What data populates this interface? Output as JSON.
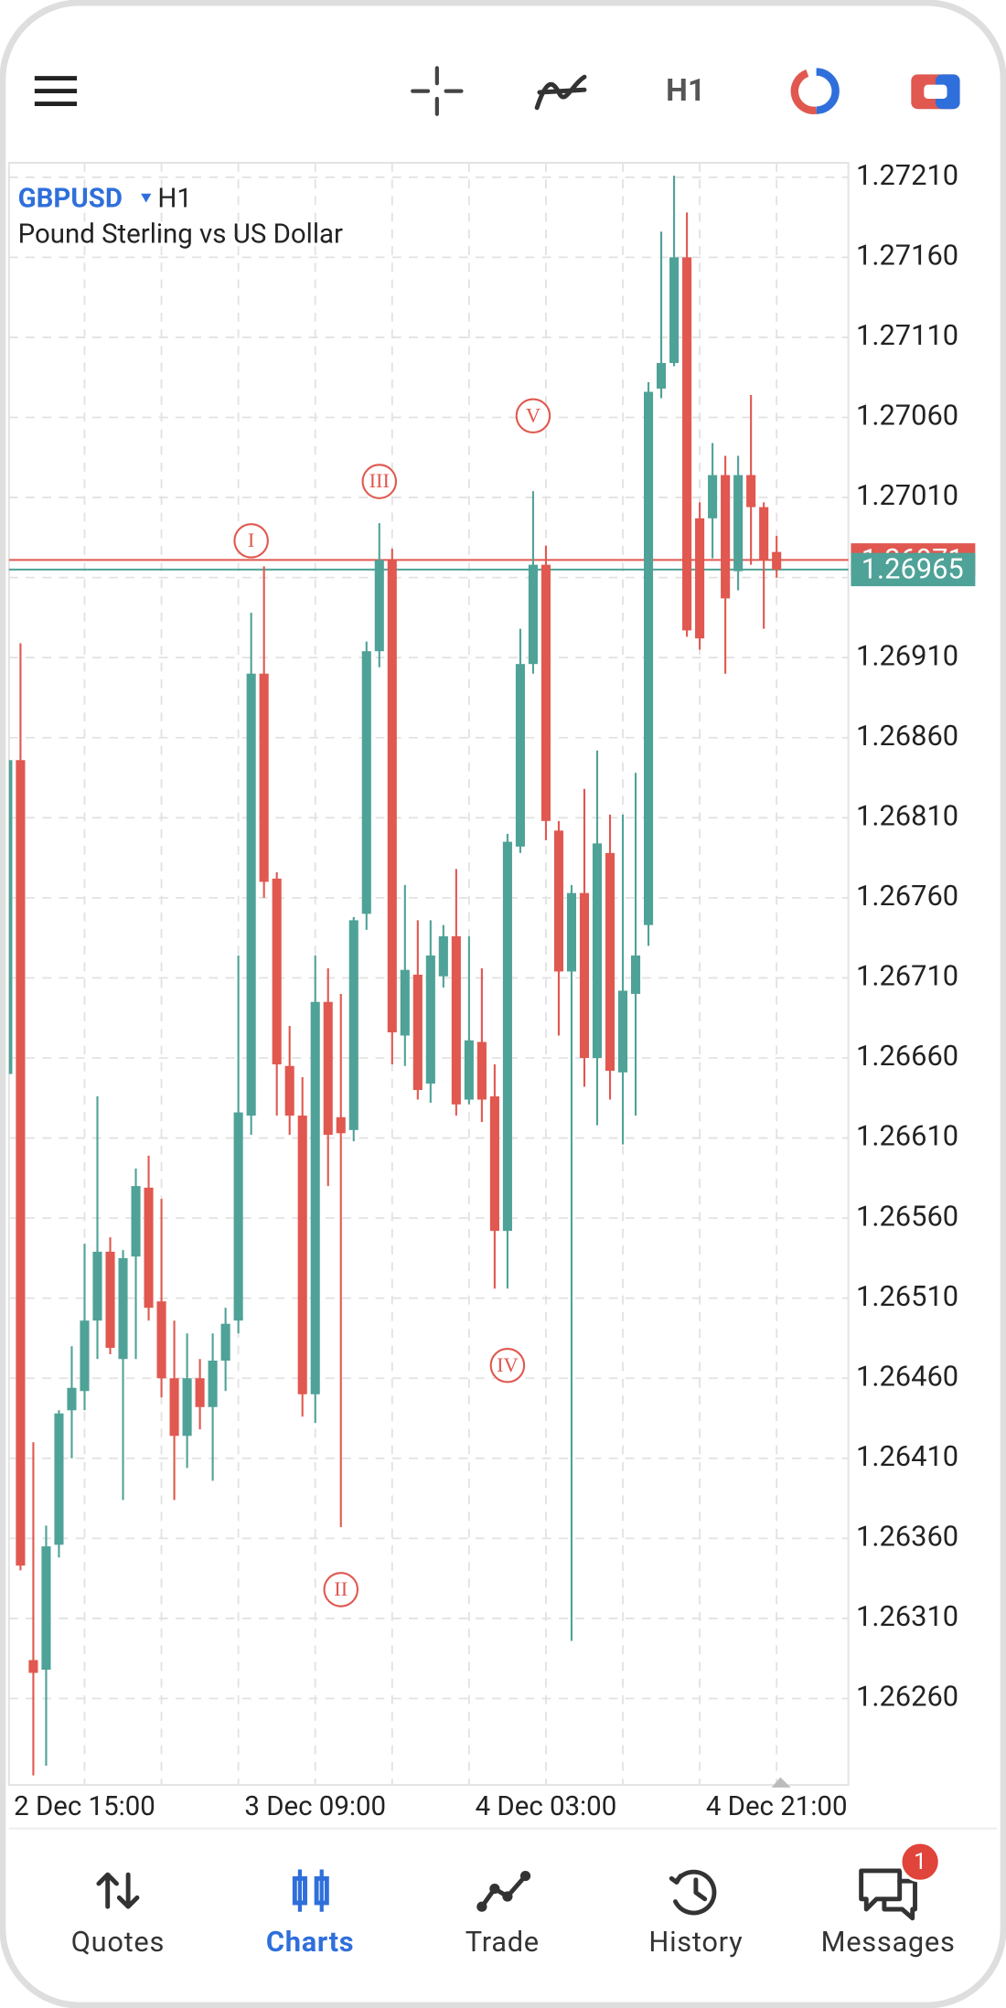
{
  "toolbar": {
    "timeframe": "H1"
  },
  "symbol": {
    "name": "GBPUSD",
    "timeframe": "H1",
    "description": "Pound Sterling vs US Dollar"
  },
  "chart_data": {
    "type": "candlestick",
    "categories": [
      null,
      null,
      null,
      null,
      null,
      null,
      "2 Dec 15:00",
      null,
      null,
      null,
      null,
      null,
      null,
      null,
      null,
      null,
      null,
      null,
      null,
      null,
      null,
      null,
      null,
      null,
      "3 Dec 09:00",
      null,
      null,
      null,
      null,
      null,
      null,
      null,
      null,
      null,
      null,
      null,
      null,
      null,
      null,
      null,
      null,
      null,
      "4 Dec 03:00",
      null,
      null,
      null,
      null,
      null,
      null,
      null,
      null,
      null,
      null,
      null,
      null,
      null,
      null,
      null,
      null,
      null,
      "4 Dec 21:00"
    ],
    "open": [
      1.2665,
      1.26846,
      1.26284,
      1.26278,
      1.26356,
      1.2644,
      1.26452,
      1.26496,
      1.26539,
      1.26472,
      1.26536,
      1.26579,
      1.26508,
      1.2646,
      1.26424,
      1.2646,
      1.26442,
      1.26471,
      1.26496,
      1.26624,
      1.269,
      1.26772,
      1.26655,
      1.26624,
      1.2645,
      1.26695,
      1.26623,
      1.26615,
      1.2675,
      1.26914,
      1.26971,
      1.26674,
      1.26712,
      1.26644,
      1.26711,
      1.26736,
      1.26634,
      1.2667,
      1.26636,
      1.26552,
      1.26792,
      1.26906,
      1.26968,
      1.26802,
      1.26714,
      1.26763,
      1.2666,
      1.26788,
      1.26651,
      1.267,
      1.26743,
      1.27078,
      1.27094,
      1.2716,
      1.26997,
      1.26997,
      1.27024,
      1.26964,
      1.27024,
      1.27004,
      1.26976
    ],
    "high": [
      1.26846,
      1.26919,
      1.2642,
      1.26368,
      1.2644,
      1.2648,
      1.26544,
      1.26636,
      1.26548,
      1.2654,
      1.26591,
      1.26599,
      1.26572,
      1.26496,
      1.26488,
      1.26472,
      1.26488,
      1.26504,
      1.26724,
      1.26938,
      1.26967,
      1.26776,
      1.2668,
      1.26648,
      1.26724,
      1.26716,
      1.267,
      1.26748,
      1.2692,
      1.26994,
      1.26978,
      1.26768,
      1.26746,
      1.26746,
      1.26743,
      1.26778,
      1.26736,
      1.26716,
      1.26656,
      1.268,
      1.26928,
      1.27014,
      1.2698,
      1.26808,
      1.26768,
      1.26828,
      1.26852,
      1.26812,
      1.26812,
      1.26838,
      1.27082,
      1.27176,
      1.27211,
      1.27188,
      1.27007,
      1.27044,
      1.27036,
      1.27036,
      1.27074,
      1.27007,
      1.26986
    ],
    "low": [
      1.2665,
      1.2634,
      1.26212,
      1.26218,
      1.26348,
      1.2641,
      1.2644,
      1.26472,
      1.26475,
      1.26384,
      1.26472,
      1.26496,
      1.26448,
      1.26384,
      1.26404,
      1.26428,
      1.26396,
      1.26452,
      1.26488,
      1.26612,
      1.2676,
      1.26624,
      1.26612,
      1.26436,
      1.26432,
      1.2658,
      1.26367,
      1.26608,
      1.2674,
      1.26904,
      1.26656,
      1.26655,
      1.26634,
      1.26632,
      1.26704,
      1.26624,
      1.26631,
      1.2662,
      1.26516,
      1.26516,
      1.26788,
      1.269,
      1.26796,
      1.26674,
      1.26296,
      1.26642,
      1.26618,
      1.26634,
      1.26606,
      1.26624,
      1.2673,
      1.27072,
      1.27092,
      1.26923,
      1.26915,
      1.26972,
      1.269,
      1.26952,
      1.26968,
      1.26928,
      1.2696
    ],
    "close": [
      1.26846,
      1.26343,
      1.26276,
      1.26355,
      1.26438,
      1.26454,
      1.26496,
      1.26539,
      1.26479,
      1.26535,
      1.2658,
      1.26504,
      1.2646,
      1.26424,
      1.2646,
      1.26442,
      1.26471,
      1.26494,
      1.26626,
      1.269,
      1.2677,
      1.26656,
      1.26624,
      1.2645,
      1.26695,
      1.26612,
      1.26613,
      1.26746,
      1.26914,
      1.26971,
      1.26676,
      1.26715,
      1.2664,
      1.26724,
      1.26736,
      1.26631,
      1.26671,
      1.26634,
      1.26552,
      1.26795,
      1.26906,
      1.26968,
      1.26808,
      1.26714,
      1.26763,
      1.2666,
      1.26794,
      1.26652,
      1.26702,
      1.26724,
      1.27076,
      1.27094,
      1.2716,
      1.26927,
      1.26922,
      1.27024,
      1.26947,
      1.27024,
      1.27004,
      1.26971,
      1.26965
    ],
    "up_color": "#4fa297",
    "down_color": "#e0584f",
    "ylim": [
      1.26206,
      1.27219
    ],
    "yticks": [
      {
        "value": 1.2721,
        "label": "1.27210"
      },
      {
        "value": 1.2716,
        "label": "1.27160"
      },
      {
        "value": 1.2711,
        "label": "1.27110"
      },
      {
        "value": 1.2706,
        "label": "1.27060"
      },
      {
        "value": 1.2701,
        "label": "1.27010"
      },
      {
        "value": 1.2696,
        "label": "1.26960"
      },
      {
        "value": 1.2691,
        "label": "1.26910"
      },
      {
        "value": 1.2686,
        "label": "1.26860"
      },
      {
        "value": 1.2681,
        "label": "1.26810"
      },
      {
        "value": 1.2676,
        "label": "1.26760"
      },
      {
        "value": 1.2671,
        "label": "1.26710"
      },
      {
        "value": 1.2666,
        "label": "1.26660"
      },
      {
        "value": 1.2661,
        "label": "1.26610"
      },
      {
        "value": 1.2656,
        "label": "1.26560"
      },
      {
        "value": 1.2651,
        "label": "1.26510"
      },
      {
        "value": 1.2646,
        "label": "1.26460"
      },
      {
        "value": 1.2641,
        "label": "1.26410"
      },
      {
        "value": 1.2636,
        "label": "1.26360"
      },
      {
        "value": 1.2631,
        "label": "1.26310"
      },
      {
        "value": 1.2626,
        "label": "1.26260"
      }
    ],
    "grid": true,
    "price_lines": [
      {
        "value": 1.26971,
        "color": "#e0584f"
      },
      {
        "value": 1.26965,
        "color": "#4fa297"
      }
    ],
    "annotations": [
      {
        "text": "I",
        "index": 19,
        "price": 1.26983
      },
      {
        "text": "II",
        "index": 26,
        "price": 1.26328
      },
      {
        "text": "III",
        "index": 29,
        "price": 1.2702
      },
      {
        "text": "IV",
        "index": 39,
        "price": 1.26468
      },
      {
        "text": "V",
        "index": 41,
        "price": 1.27061
      }
    ]
  },
  "nav": {
    "items": [
      "Quotes",
      "Charts",
      "Trade",
      "History",
      "Messages"
    ],
    "badge": "1"
  }
}
